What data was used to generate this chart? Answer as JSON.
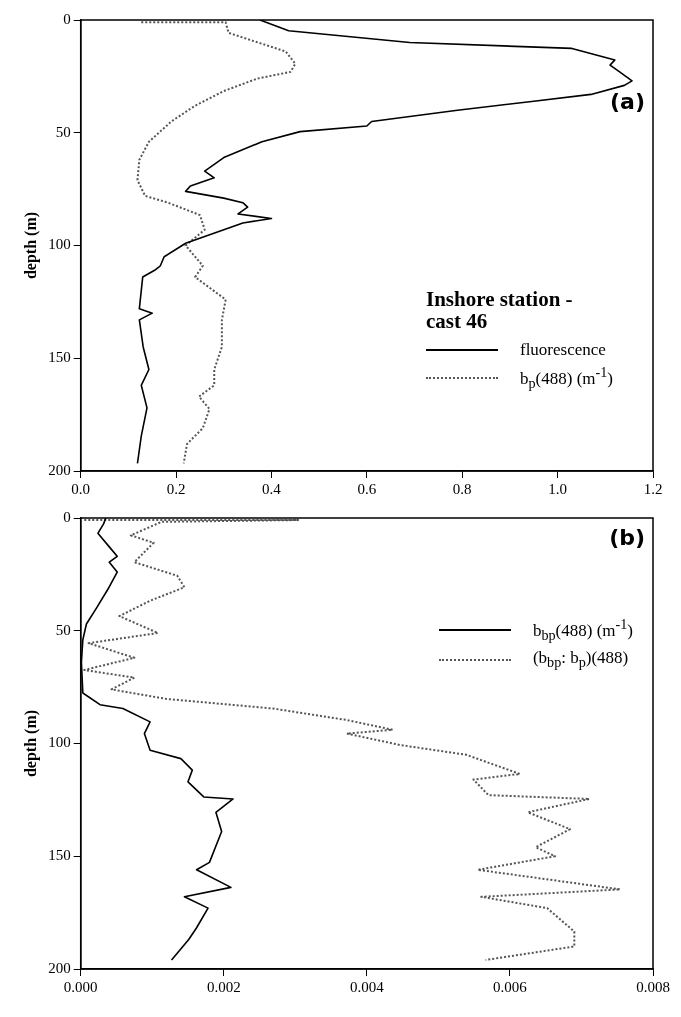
{
  "chart_data": [
    {
      "type": "line",
      "title": "(a)",
      "ylabel": "depth (m)",
      "annotations": [
        "Inshore station - cast 46"
      ],
      "legend": "right",
      "grid": false,
      "marker": "none",
      "xlim": [
        0,
        1.2
      ],
      "ylim": [
        200,
        0
      ],
      "xticks": [
        {
          "value": 0,
          "label": "0.0"
        },
        {
          "value": 0.2,
          "label": "0.2"
        },
        {
          "value": 0.4,
          "label": "0.4"
        },
        {
          "value": 0.6,
          "label": "0.6"
        },
        {
          "value": 0.8,
          "label": "0.8"
        },
        {
          "value": 1.0,
          "label": "1.0"
        },
        {
          "value": 1.2,
          "label": "1.2"
        }
      ],
      "yticks": [
        0,
        50,
        100,
        150,
        200
      ],
      "series": [
        {
          "name": "fluorescence",
          "color": "#000000",
          "line_style": "solid",
          "x": [
            0.376,
            0.436,
            0.69,
            1.03,
            1.12,
            1.11,
            1.13,
            1.156,
            1.14,
            1.07,
            0.95,
            0.79,
            0.61,
            0.6,
            0.46,
            0.38,
            0.3,
            0.26,
            0.28,
            0.23,
            0.22,
            0.3,
            0.34,
            0.35,
            0.33,
            0.4,
            0.34,
            0.3,
            0.22,
            0.175,
            0.167,
            0.155,
            0.13,
            0.123,
            0.15,
            0.123,
            0.131,
            0.143,
            0.127,
            0.139,
            0.127,
            0.119
          ],
          "values": [
            0,
            4.8,
            10,
            12.6,
            17.7,
            20,
            23,
            27,
            29,
            33,
            36,
            40,
            45,
            47,
            49.5,
            54,
            61,
            67,
            70,
            73.6,
            76,
            79,
            81,
            83,
            86,
            88,
            90,
            93,
            99,
            105,
            109,
            111,
            114,
            128,
            130,
            133,
            145,
            155,
            162,
            172,
            184.5,
            196.6
          ]
        },
        {
          "name": "b$_{p}$(488) (m$^{-1}$)",
          "color": "#555555",
          "line_style": "dotted",
          "x": [
            0.127,
            0.304,
            0.31,
            0.384,
            0.43,
            0.45,
            0.44,
            0.37,
            0.3,
            0.24,
            0.19,
            0.143,
            0.123,
            0.119,
            0.135,
            0.183,
            0.25,
            0.26,
            0.22,
            0.256,
            0.24,
            0.304,
            0.296,
            0.296,
            0.28,
            0.28,
            0.248,
            0.27,
            0.256,
            0.223,
            0.216
          ],
          "values": [
            1,
            1,
            5.7,
            10.8,
            14,
            19.4,
            23,
            26,
            31.5,
            38,
            45,
            54,
            62,
            71,
            78,
            81,
            86.5,
            93,
            100,
            109,
            114,
            124,
            133,
            145,
            155,
            162,
            167,
            172.5,
            181,
            188,
            196.6
          ]
        }
      ]
    },
    {
      "type": "line",
      "title": "(b)",
      "ylabel": "depth (m)",
      "legend": "top right",
      "grid": false,
      "marker": "none",
      "xlim": [
        0,
        0.008
      ],
      "ylim": [
        200,
        0
      ],
      "xticks": [
        {
          "value": 0,
          "label": "0.000"
        },
        {
          "value": 0.002,
          "label": "0.002"
        },
        {
          "value": 0.004,
          "label": "0.004"
        },
        {
          "value": 0.006,
          "label": "0.006"
        },
        {
          "value": 0.008,
          "label": "0.008"
        }
      ],
      "yticks": [
        0,
        50,
        100,
        150,
        200
      ],
      "series": [
        {
          "name": "b$_{bp}$(488) (m$^{-1}$)",
          "color": "#000000",
          "line_style": "solid",
          "x": [
            0.00035,
            0.00032,
            0.00024,
            0.0004,
            0.00051,
            0.0004,
            0.00051,
            0.00038,
            0.00022,
            8e-05,
            3e-05,
            1e-05,
            3e-05,
            0.00027,
            0.00059,
            0.00097,
            0.00089,
            0.00097,
            0.0014,
            0.00156,
            0.0015,
            0.00172,
            0.00213,
            0.00189,
            0.00197,
            0.0018,
            0.00162,
            0.0021,
            0.00145,
            0.00178,
            0.00162,
            0.00151,
            0.00127
          ],
          "values": [
            0,
            2.6,
            6.8,
            12.8,
            17,
            19.6,
            24,
            31.6,
            40,
            47,
            54,
            64,
            77.6,
            82.8,
            84.5,
            90.4,
            95.6,
            103,
            106.7,
            111.8,
            117,
            123.7,
            124.6,
            130.5,
            139,
            152.7,
            156,
            163.8,
            168,
            173,
            181.7,
            186.9,
            196
          ]
        },
        {
          "name": "(b$_{bp}$: b$_{p}$)(488)",
          "color": "#555555",
          "line_style": "dotted",
          "x": [
            5e-05,
            0.00304,
            0.00113,
            0.0007,
            0.00102,
            0.00075,
            0.00135,
            0.00145,
            0.00097,
            0.00054,
            0.00108,
            0.00011,
            0.00075,
            5e-05,
            0.00075,
            0.00043,
            0.00119,
            0.00269,
            0.00372,
            0.00436,
            0.00372,
            0.00447,
            0.00539,
            0.00614,
            0.00549,
            0.0057,
            0.00711,
            0.00625,
            0.00684,
            0.00636,
            0.00663,
            0.00555,
            0.00754,
            0.0056,
            0.00652,
            0.0069,
            0.0069,
            0.00566
          ],
          "values": [
            0.9,
            0.9,
            1.7,
            7.7,
            11,
            19.6,
            25.6,
            30.7,
            36.7,
            43.5,
            51,
            55.5,
            62,
            67.4,
            70.8,
            76,
            80.2,
            84.5,
            89.6,
            93.9,
            95.6,
            100.7,
            105,
            113.5,
            116,
            122.9,
            124.6,
            130.5,
            138,
            146,
            150,
            156,
            164.7,
            168,
            173,
            183.4,
            190,
            196
          ]
        }
      ]
    }
  ]
}
